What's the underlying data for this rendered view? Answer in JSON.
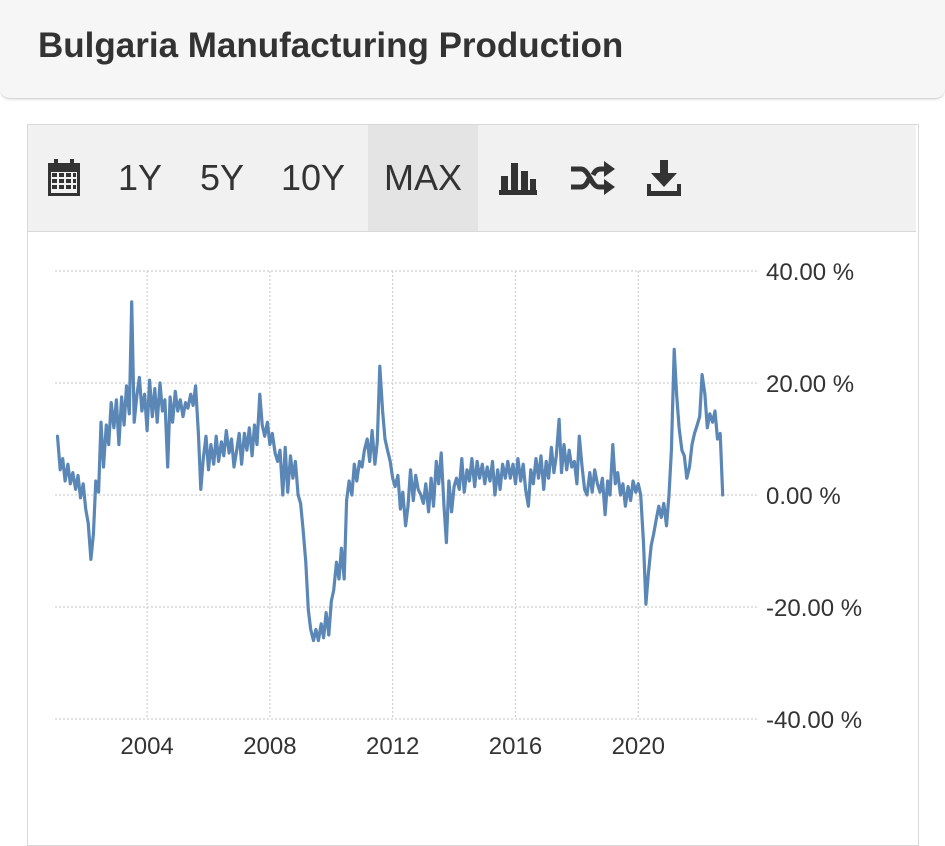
{
  "header": {
    "title": "Bulgaria Manufacturing Production"
  },
  "toolbar": {
    "calendar_icon": "calendar-icon",
    "ranges": [
      {
        "label": "1Y",
        "active": false
      },
      {
        "label": "5Y",
        "active": false
      },
      {
        "label": "10Y",
        "active": false
      },
      {
        "label": "MAX",
        "active": true
      }
    ],
    "bar_chart_icon": "bar-chart-icon",
    "shuffle_icon": "shuffle-icon",
    "download_icon": "download-icon"
  },
  "chart_data": {
    "type": "line",
    "title": "",
    "xlabel": "",
    "ylabel": "",
    "ylim": [
      -40,
      40
    ],
    "xlim": [
      2001.0,
      2023.9
    ],
    "grid": true,
    "y_ticks": [
      "40.00 %",
      "20.00 %",
      "0.00 %",
      "-20.00 %",
      "-40.00 %"
    ],
    "y_tick_values": [
      40,
      20,
      0,
      -20,
      -40
    ],
    "x_ticks": [
      "2004",
      "2008",
      "2012",
      "2016",
      "2020"
    ],
    "x_tick_values": [
      2004,
      2008,
      2012,
      2016,
      2020
    ],
    "line_color": "#5b87b7",
    "series": [
      {
        "name": "",
        "points": [
          [
            2001.08,
            10.5
          ],
          [
            2001.17,
            4.5
          ],
          [
            2001.25,
            6.5
          ],
          [
            2001.33,
            2.5
          ],
          [
            2001.42,
            5.5
          ],
          [
            2001.5,
            2.0
          ],
          [
            2001.58,
            4.0
          ],
          [
            2001.67,
            1.0
          ],
          [
            2001.75,
            3.5
          ],
          [
            2001.83,
            -0.5
          ],
          [
            2001.92,
            2.0
          ],
          [
            2002.0,
            -2.5
          ],
          [
            2002.08,
            -5.0
          ],
          [
            2002.17,
            -11.5
          ],
          [
            2002.25,
            -7.0
          ],
          [
            2002.33,
            2.5
          ],
          [
            2002.42,
            0.5
          ],
          [
            2002.5,
            13.0
          ],
          [
            2002.58,
            5.0
          ],
          [
            2002.67,
            12.5
          ],
          [
            2002.75,
            9.0
          ],
          [
            2002.83,
            16.5
          ],
          [
            2002.92,
            12.0
          ],
          [
            2003.0,
            17.0
          ],
          [
            2003.08,
            9.0
          ],
          [
            2003.17,
            17.5
          ],
          [
            2003.25,
            12.5
          ],
          [
            2003.33,
            19.5
          ],
          [
            2003.42,
            14.5
          ],
          [
            2003.5,
            34.5
          ],
          [
            2003.58,
            13.0
          ],
          [
            2003.67,
            18.0
          ],
          [
            2003.75,
            21.0
          ],
          [
            2003.83,
            15.0
          ],
          [
            2003.92,
            18.0
          ],
          [
            2004.0,
            11.5
          ],
          [
            2004.08,
            20.5
          ],
          [
            2004.17,
            14.0
          ],
          [
            2004.25,
            19.0
          ],
          [
            2004.33,
            13.0
          ],
          [
            2004.42,
            20.0
          ],
          [
            2004.5,
            15.0
          ],
          [
            2004.58,
            17.0
          ],
          [
            2004.67,
            5.0
          ],
          [
            2004.75,
            17.5
          ],
          [
            2004.83,
            13.0
          ],
          [
            2004.92,
            18.5
          ],
          [
            2005.0,
            15.0
          ],
          [
            2005.08,
            17.0
          ],
          [
            2005.17,
            14.0
          ],
          [
            2005.25,
            16.5
          ],
          [
            2005.33,
            15.5
          ],
          [
            2005.42,
            18.0
          ],
          [
            2005.5,
            16.0
          ],
          [
            2005.58,
            19.5
          ],
          [
            2005.67,
            11.0
          ],
          [
            2005.75,
            1.0
          ],
          [
            2005.83,
            6.5
          ],
          [
            2005.92,
            10.5
          ],
          [
            2006.0,
            4.5
          ],
          [
            2006.08,
            9.0
          ],
          [
            2006.17,
            5.5
          ],
          [
            2006.25,
            10.5
          ],
          [
            2006.33,
            6.0
          ],
          [
            2006.42,
            9.5
          ],
          [
            2006.5,
            7.0
          ],
          [
            2006.58,
            11.5
          ],
          [
            2006.67,
            7.5
          ],
          [
            2006.75,
            10.0
          ],
          [
            2006.83,
            5.0
          ],
          [
            2006.92,
            8.0
          ],
          [
            2007.0,
            11.0
          ],
          [
            2007.08,
            5.5
          ],
          [
            2007.17,
            11.0
          ],
          [
            2007.25,
            8.0
          ],
          [
            2007.33,
            12.0
          ],
          [
            2007.42,
            7.0
          ],
          [
            2007.5,
            12.5
          ],
          [
            2007.58,
            9.0
          ],
          [
            2007.67,
            18.0
          ],
          [
            2007.75,
            12.5
          ],
          [
            2007.83,
            10.5
          ],
          [
            2007.92,
            13.0
          ],
          [
            2008.0,
            9.0
          ],
          [
            2008.08,
            11.0
          ],
          [
            2008.17,
            7.5
          ],
          [
            2008.25,
            6.0
          ],
          [
            2008.33,
            8.0
          ],
          [
            2008.42,
            0.0
          ],
          [
            2008.5,
            8.5
          ],
          [
            2008.58,
            0.5
          ],
          [
            2008.67,
            7.0
          ],
          [
            2008.75,
            3.0
          ],
          [
            2008.83,
            6.0
          ],
          [
            2008.92,
            0.0
          ],
          [
            2009.0,
            -1.5
          ],
          [
            2009.08,
            -6.0
          ],
          [
            2009.17,
            -12.0
          ],
          [
            2009.25,
            -20.5
          ],
          [
            2009.33,
            -24.0
          ],
          [
            2009.42,
            -26.0
          ],
          [
            2009.5,
            -24.0
          ],
          [
            2009.58,
            -26.0
          ],
          [
            2009.67,
            -23.0
          ],
          [
            2009.75,
            -25.5
          ],
          [
            2009.83,
            -21.0
          ],
          [
            2009.92,
            -25.0
          ],
          [
            2010.0,
            -19.0
          ],
          [
            2010.08,
            -17.0
          ],
          [
            2010.17,
            -12.0
          ],
          [
            2010.25,
            -15.0
          ],
          [
            2010.33,
            -9.5
          ],
          [
            2010.42,
            -15.0
          ],
          [
            2010.5,
            -1.0
          ],
          [
            2010.58,
            2.5
          ],
          [
            2010.67,
            0.0
          ],
          [
            2010.75,
            5.5
          ],
          [
            2010.83,
            2.5
          ],
          [
            2010.92,
            6.0
          ],
          [
            2011.0,
            5.0
          ],
          [
            2011.08,
            8.0
          ],
          [
            2011.17,
            10.0
          ],
          [
            2011.25,
            6.0
          ],
          [
            2011.33,
            11.5
          ],
          [
            2011.42,
            5.5
          ],
          [
            2011.5,
            9.5
          ],
          [
            2011.58,
            23.0
          ],
          [
            2011.67,
            15.0
          ],
          [
            2011.75,
            10.0
          ],
          [
            2011.83,
            8.0
          ],
          [
            2011.92,
            6.0
          ],
          [
            2012.0,
            3.0
          ],
          [
            2012.08,
            1.5
          ],
          [
            2012.17,
            3.5
          ],
          [
            2012.25,
            -2.5
          ],
          [
            2012.33,
            0.5
          ],
          [
            2012.42,
            -5.5
          ],
          [
            2012.5,
            -2.0
          ],
          [
            2012.58,
            4.5
          ],
          [
            2012.67,
            -1.0
          ],
          [
            2012.75,
            3.5
          ],
          [
            2012.83,
            1.0
          ],
          [
            2012.92,
            0.0
          ],
          [
            2013.0,
            -1.5
          ],
          [
            2013.08,
            2.0
          ],
          [
            2013.17,
            -3.0
          ],
          [
            2013.25,
            3.0
          ],
          [
            2013.33,
            -2.0
          ],
          [
            2013.42,
            6.0
          ],
          [
            2013.5,
            2.0
          ],
          [
            2013.58,
            7.5
          ],
          [
            2013.67,
            -2.0
          ],
          [
            2013.75,
            -8.5
          ],
          [
            2013.83,
            2.5
          ],
          [
            2013.92,
            -3.0
          ],
          [
            2014.0,
            1.5
          ],
          [
            2014.08,
            3.0
          ],
          [
            2014.17,
            1.0
          ],
          [
            2014.25,
            6.5
          ],
          [
            2014.33,
            0.5
          ],
          [
            2014.42,
            4.5
          ],
          [
            2014.5,
            2.5
          ],
          [
            2014.58,
            6.5
          ],
          [
            2014.67,
            1.5
          ],
          [
            2014.75,
            6.0
          ],
          [
            2014.83,
            3.0
          ],
          [
            2014.92,
            5.5
          ],
          [
            2015.0,
            2.0
          ],
          [
            2015.08,
            5.0
          ],
          [
            2015.17,
            2.5
          ],
          [
            2015.25,
            6.0
          ],
          [
            2015.33,
            0.0
          ],
          [
            2015.42,
            4.5
          ],
          [
            2015.5,
            1.0
          ],
          [
            2015.58,
            5.5
          ],
          [
            2015.67,
            3.0
          ],
          [
            2015.75,
            6.0
          ],
          [
            2015.83,
            3.0
          ],
          [
            2015.92,
            5.5
          ],
          [
            2016.0,
            2.0
          ],
          [
            2016.08,
            6.5
          ],
          [
            2016.17,
            2.5
          ],
          [
            2016.25,
            5.5
          ],
          [
            2016.33,
            1.0
          ],
          [
            2016.42,
            -2.0
          ],
          [
            2016.5,
            4.5
          ],
          [
            2016.58,
            2.0
          ],
          [
            2016.67,
            6.5
          ],
          [
            2016.75,
            3.0
          ],
          [
            2016.83,
            7.0
          ],
          [
            2016.92,
            1.0
          ],
          [
            2017.0,
            6.0
          ],
          [
            2017.08,
            3.0
          ],
          [
            2017.17,
            8.5
          ],
          [
            2017.25,
            4.0
          ],
          [
            2017.33,
            7.0
          ],
          [
            2017.42,
            13.5
          ],
          [
            2017.5,
            4.0
          ],
          [
            2017.58,
            9.0
          ],
          [
            2017.67,
            4.5
          ],
          [
            2017.75,
            8.0
          ],
          [
            2017.83,
            5.0
          ],
          [
            2017.92,
            6.0
          ],
          [
            2018.0,
            2.0
          ],
          [
            2018.08,
            10.5
          ],
          [
            2018.17,
            5.0
          ],
          [
            2018.25,
            1.0
          ],
          [
            2018.33,
            0.0
          ],
          [
            2018.42,
            4.0
          ],
          [
            2018.5,
            0.5
          ],
          [
            2018.58,
            4.5
          ],
          [
            2018.67,
            2.0
          ],
          [
            2018.75,
            0.5
          ],
          [
            2018.83,
            3.0
          ],
          [
            2018.92,
            -3.5
          ],
          [
            2019.0,
            2.5
          ],
          [
            2019.08,
            0.0
          ],
          [
            2019.17,
            9.0
          ],
          [
            2019.25,
            2.0
          ],
          [
            2019.33,
            4.0
          ],
          [
            2019.42,
            0.0
          ],
          [
            2019.5,
            2.0
          ],
          [
            2019.58,
            -2.0
          ],
          [
            2019.67,
            1.5
          ],
          [
            2019.75,
            -1.0
          ],
          [
            2019.83,
            2.5
          ],
          [
            2019.92,
            0.5
          ],
          [
            2020.0,
            2.0
          ],
          [
            2020.08,
            0.0
          ],
          [
            2020.17,
            -8.5
          ],
          [
            2020.25,
            -19.5
          ],
          [
            2020.33,
            -14.0
          ],
          [
            2020.42,
            -9.0
          ],
          [
            2020.5,
            -7.0
          ],
          [
            2020.58,
            -4.5
          ],
          [
            2020.67,
            -2.0
          ],
          [
            2020.75,
            -4.0
          ],
          [
            2020.83,
            -1.5
          ],
          [
            2020.92,
            -5.5
          ],
          [
            2021.0,
            0.0
          ],
          [
            2021.08,
            8.0
          ],
          [
            2021.17,
            26.0
          ],
          [
            2021.25,
            18.0
          ],
          [
            2021.33,
            12.0
          ],
          [
            2021.42,
            8.0
          ],
          [
            2021.5,
            7.0
          ],
          [
            2021.58,
            3.0
          ],
          [
            2021.67,
            5.0
          ],
          [
            2021.75,
            9.0
          ],
          [
            2021.83,
            11.0
          ],
          [
            2021.92,
            12.5
          ],
          [
            2022.0,
            14.0
          ],
          [
            2022.08,
            21.5
          ],
          [
            2022.17,
            18.0
          ],
          [
            2022.25,
            12.0
          ],
          [
            2022.33,
            14.5
          ],
          [
            2022.42,
            13.0
          ],
          [
            2022.5,
            15.0
          ],
          [
            2022.58,
            10.0
          ],
          [
            2022.67,
            11.0
          ],
          [
            2022.75,
            0.0
          ]
        ]
      }
    ]
  }
}
